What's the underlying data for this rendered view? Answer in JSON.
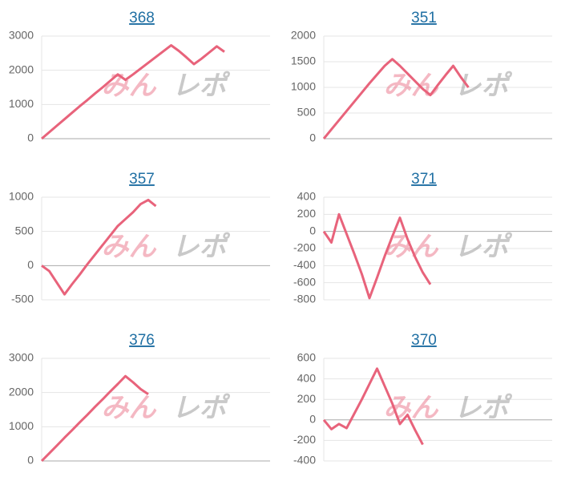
{
  "watermark": {
    "pink": "みん",
    "gray": "レポ"
  },
  "chart_data": [
    {
      "type": "line",
      "title": "368",
      "color": "#e8637b",
      "grid": true,
      "ylim": [
        0,
        3000
      ],
      "yticks": [
        0,
        1000,
        2000,
        3000
      ],
      "values": [
        0,
        190,
        380,
        570,
        760,
        950,
        1130,
        1320,
        1500,
        1690,
        1880,
        1720,
        1880,
        2050,
        2220,
        2390,
        2560,
        2730,
        2570,
        2380,
        2180,
        2340,
        2520,
        2700,
        2540
      ]
    },
    {
      "type": "line",
      "title": "351",
      "color": "#e8637b",
      "grid": true,
      "ylim": [
        0,
        2000
      ],
      "yticks": [
        0,
        500,
        1000,
        1500,
        2000
      ],
      "values": [
        0,
        180,
        360,
        540,
        720,
        900,
        1080,
        1250,
        1420,
        1550,
        1420,
        1270,
        1120,
        970,
        850,
        1050,
        1240,
        1420,
        1200,
        1000
      ]
    },
    {
      "type": "line",
      "title": "357",
      "color": "#e8637b",
      "grid": true,
      "ylim": [
        -500,
        1000
      ],
      "yticks": [
        -500,
        0,
        500,
        1000
      ],
      "values": [
        0,
        -80,
        -250,
        -420,
        -270,
        -130,
        20,
        160,
        300,
        440,
        580,
        680,
        780,
        900,
        960,
        870
      ]
    },
    {
      "type": "line",
      "title": "371",
      "color": "#e8637b",
      "grid": true,
      "ylim": [
        -800,
        400
      ],
      "yticks": [
        -800,
        -600,
        -400,
        -200,
        0,
        200,
        400
      ],
      "values": [
        0,
        -130,
        200,
        -30,
        -260,
        -500,
        -780,
        -540,
        -290,
        -60,
        160,
        -90,
        -300,
        -480,
        -620
      ]
    },
    {
      "type": "line",
      "title": "376",
      "color": "#e8637b",
      "grid": true,
      "ylim": [
        0,
        3000
      ],
      "yticks": [
        0,
        1000,
        2000,
        3000
      ],
      "values": [
        0,
        225,
        450,
        680,
        900,
        1130,
        1350,
        1580,
        1800,
        2030,
        2250,
        2480,
        2300,
        2100,
        1950
      ]
    },
    {
      "type": "line",
      "title": "370",
      "color": "#e8637b",
      "grid": true,
      "ylim": [
        -400,
        600
      ],
      "yticks": [
        -400,
        -200,
        0,
        200,
        400,
        600
      ],
      "values": [
        0,
        -90,
        -40,
        -80,
        60,
        200,
        350,
        500,
        330,
        160,
        -40,
        50,
        -100,
        -240
      ]
    }
  ]
}
